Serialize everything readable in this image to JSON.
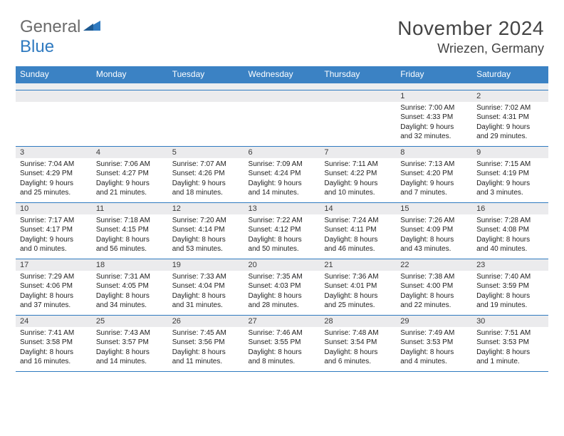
{
  "logo": {
    "text1": "General",
    "text2": "Blue",
    "color_gray": "#6b6b6b",
    "color_blue": "#2f7ac0"
  },
  "title": "November 2024",
  "location": "Wriezen, Germany",
  "colors": {
    "header_bg": "#3b82c4",
    "header_text": "#ffffff",
    "daynum_bg": "#ebebed",
    "border": "#2f7ac0",
    "body_text": "#222222",
    "page_bg": "#ffffff"
  },
  "fonts": {
    "title_size_pt": 28,
    "location_size_pt": 18,
    "dayheader_size_pt": 12,
    "body_size_pt": 10
  },
  "day_headers": [
    "Sunday",
    "Monday",
    "Tuesday",
    "Wednesday",
    "Thursday",
    "Friday",
    "Saturday"
  ],
  "weeks": [
    [
      null,
      null,
      null,
      null,
      null,
      {
        "n": "1",
        "sunrise": "7:00 AM",
        "sunset": "4:33 PM",
        "day_h": 9,
        "day_m": 32
      },
      {
        "n": "2",
        "sunrise": "7:02 AM",
        "sunset": "4:31 PM",
        "day_h": 9,
        "day_m": 29
      }
    ],
    [
      {
        "n": "3",
        "sunrise": "7:04 AM",
        "sunset": "4:29 PM",
        "day_h": 9,
        "day_m": 25
      },
      {
        "n": "4",
        "sunrise": "7:06 AM",
        "sunset": "4:27 PM",
        "day_h": 9,
        "day_m": 21
      },
      {
        "n": "5",
        "sunrise": "7:07 AM",
        "sunset": "4:26 PM",
        "day_h": 9,
        "day_m": 18
      },
      {
        "n": "6",
        "sunrise": "7:09 AM",
        "sunset": "4:24 PM",
        "day_h": 9,
        "day_m": 14
      },
      {
        "n": "7",
        "sunrise": "7:11 AM",
        "sunset": "4:22 PM",
        "day_h": 9,
        "day_m": 10
      },
      {
        "n": "8",
        "sunrise": "7:13 AM",
        "sunset": "4:20 PM",
        "day_h": 9,
        "day_m": 7
      },
      {
        "n": "9",
        "sunrise": "7:15 AM",
        "sunset": "4:19 PM",
        "day_h": 9,
        "day_m": 3
      }
    ],
    [
      {
        "n": "10",
        "sunrise": "7:17 AM",
        "sunset": "4:17 PM",
        "day_h": 9,
        "day_m": 0
      },
      {
        "n": "11",
        "sunrise": "7:18 AM",
        "sunset": "4:15 PM",
        "day_h": 8,
        "day_m": 56
      },
      {
        "n": "12",
        "sunrise": "7:20 AM",
        "sunset": "4:14 PM",
        "day_h": 8,
        "day_m": 53
      },
      {
        "n": "13",
        "sunrise": "7:22 AM",
        "sunset": "4:12 PM",
        "day_h": 8,
        "day_m": 50
      },
      {
        "n": "14",
        "sunrise": "7:24 AM",
        "sunset": "4:11 PM",
        "day_h": 8,
        "day_m": 46
      },
      {
        "n": "15",
        "sunrise": "7:26 AM",
        "sunset": "4:09 PM",
        "day_h": 8,
        "day_m": 43
      },
      {
        "n": "16",
        "sunrise": "7:28 AM",
        "sunset": "4:08 PM",
        "day_h": 8,
        "day_m": 40
      }
    ],
    [
      {
        "n": "17",
        "sunrise": "7:29 AM",
        "sunset": "4:06 PM",
        "day_h": 8,
        "day_m": 37
      },
      {
        "n": "18",
        "sunrise": "7:31 AM",
        "sunset": "4:05 PM",
        "day_h": 8,
        "day_m": 34
      },
      {
        "n": "19",
        "sunrise": "7:33 AM",
        "sunset": "4:04 PM",
        "day_h": 8,
        "day_m": 31
      },
      {
        "n": "20",
        "sunrise": "7:35 AM",
        "sunset": "4:03 PM",
        "day_h": 8,
        "day_m": 28
      },
      {
        "n": "21",
        "sunrise": "7:36 AM",
        "sunset": "4:01 PM",
        "day_h": 8,
        "day_m": 25
      },
      {
        "n": "22",
        "sunrise": "7:38 AM",
        "sunset": "4:00 PM",
        "day_h": 8,
        "day_m": 22
      },
      {
        "n": "23",
        "sunrise": "7:40 AM",
        "sunset": "3:59 PM",
        "day_h": 8,
        "day_m": 19
      }
    ],
    [
      {
        "n": "24",
        "sunrise": "7:41 AM",
        "sunset": "3:58 PM",
        "day_h": 8,
        "day_m": 16
      },
      {
        "n": "25",
        "sunrise": "7:43 AM",
        "sunset": "3:57 PM",
        "day_h": 8,
        "day_m": 14
      },
      {
        "n": "26",
        "sunrise": "7:45 AM",
        "sunset": "3:56 PM",
        "day_h": 8,
        "day_m": 11
      },
      {
        "n": "27",
        "sunrise": "7:46 AM",
        "sunset": "3:55 PM",
        "day_h": 8,
        "day_m": 8
      },
      {
        "n": "28",
        "sunrise": "7:48 AM",
        "sunset": "3:54 PM",
        "day_h": 8,
        "day_m": 6
      },
      {
        "n": "29",
        "sunrise": "7:49 AM",
        "sunset": "3:53 PM",
        "day_h": 8,
        "day_m": 4
      },
      {
        "n": "30",
        "sunrise": "7:51 AM",
        "sunset": "3:53 PM",
        "day_h": 8,
        "day_m": 1
      }
    ]
  ]
}
